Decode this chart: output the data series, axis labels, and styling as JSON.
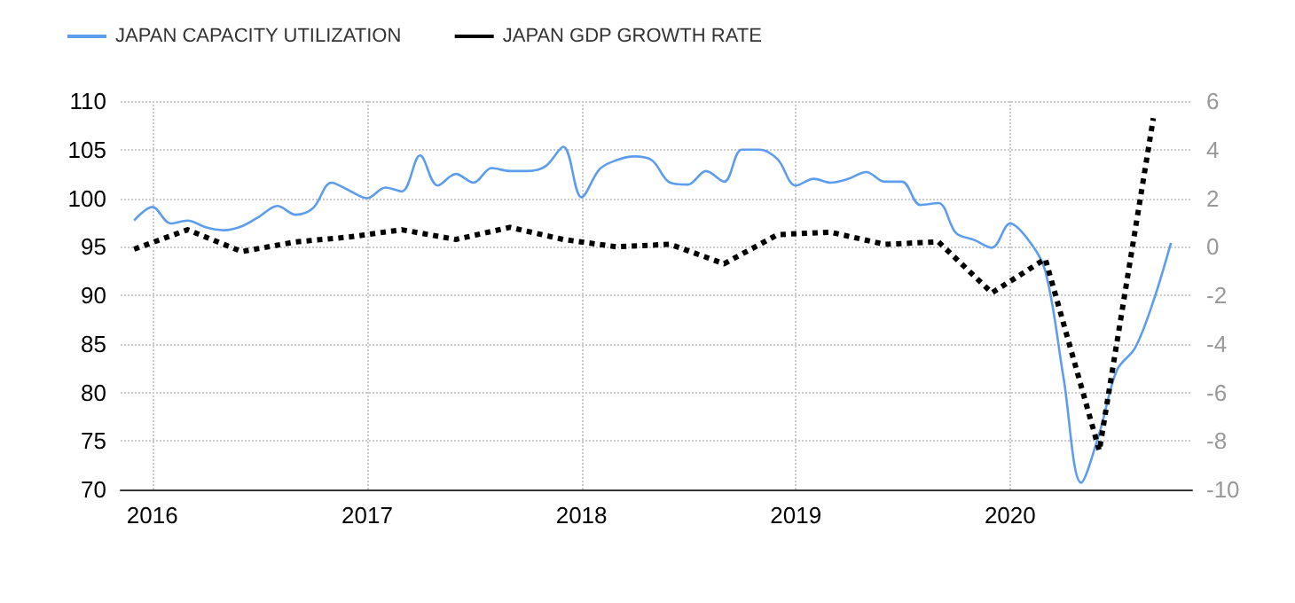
{
  "chart_data": {
    "type": "line",
    "xlim": [
      "2015-11-08",
      "2020-11-06"
    ],
    "xticks": [
      {
        "value": "2016-01-01",
        "label": "2016"
      },
      {
        "value": "2017-01-01",
        "label": "2017"
      },
      {
        "value": "2018-01-01",
        "label": "2018"
      },
      {
        "value": "2019-01-01",
        "label": "2019"
      },
      {
        "value": "2020-01-01",
        "label": "2020"
      }
    ],
    "ylim": [
      70,
      110
    ],
    "yticks": [
      70,
      75,
      80,
      85,
      90,
      95,
      100,
      105,
      110
    ],
    "y2lim": [
      -10,
      6
    ],
    "y2ticks": [
      -10,
      -8,
      -6,
      -4,
      -2,
      0,
      2,
      4,
      6
    ],
    "grid": true,
    "legend": "top left",
    "marker": "none",
    "series": [
      {
        "name": "JAPAN CAPACITY UTILIZATION",
        "color": "#5c9ded",
        "line_style": "solid",
        "x": [
          "2015-12",
          "2016-01",
          "2016-02",
          "2016-03",
          "2016-04",
          "2016-05",
          "2016-06",
          "2016-07",
          "2016-08",
          "2016-09",
          "2016-10",
          "2016-11",
          "2016-12",
          "2017-01",
          "2017-02",
          "2017-03",
          "2017-04",
          "2017-05",
          "2017-06",
          "2017-07",
          "2017-08",
          "2017-09",
          "2017-10",
          "2017-11",
          "2017-12",
          "2018-01",
          "2018-02",
          "2018-03",
          "2018-04",
          "2018-05",
          "2018-06",
          "2018-07",
          "2018-08",
          "2018-09",
          "2018-10",
          "2018-11",
          "2018-12",
          "2019-01",
          "2019-02",
          "2019-03",
          "2019-04",
          "2019-05",
          "2019-06",
          "2019-07",
          "2019-08",
          "2019-09",
          "2019-10",
          "2019-11",
          "2019-12",
          "2020-01",
          "2020-02",
          "2020-03",
          "2020-04",
          "2020-05",
          "2020-06",
          "2020-07",
          "2020-08",
          "2020-09",
          "2020-10"
        ],
        "values": [
          97.7,
          99.1,
          97.4,
          97.7,
          97.0,
          96.7,
          97.1,
          98.1,
          99.2,
          98.3,
          99.0,
          101.6,
          100.8,
          100.0,
          101.1,
          100.7,
          104.4,
          101.3,
          102.5,
          101.6,
          103.1,
          102.8,
          102.8,
          103.3,
          105.3,
          100.1,
          103.0,
          103.9,
          104.3,
          103.9,
          101.6,
          101.4,
          102.8,
          101.7,
          105.0,
          105.0,
          104.0,
          101.3,
          102.0,
          101.6,
          102.0,
          102.7,
          101.7,
          101.7,
          99.3,
          99.5,
          96.4,
          95.7,
          94.9,
          97.4,
          95.7,
          92.5,
          81.5,
          70.7,
          75.8,
          82.3,
          84.6,
          89.4,
          95.4
        ]
      },
      {
        "name": "JAPAN GDP GROWTH RATE",
        "color": "#000000",
        "line_style": "dotted",
        "axis": "y2",
        "x": [
          "2015-12",
          "2016-03",
          "2016-06",
          "2016-09",
          "2016-12",
          "2017-03",
          "2017-06",
          "2017-09",
          "2017-12",
          "2018-03",
          "2018-06",
          "2018-09",
          "2018-12",
          "2019-03",
          "2019-06",
          "2019-09",
          "2019-12",
          "2020-03",
          "2020-06",
          "2020-09"
        ],
        "values": [
          -0.1,
          0.7,
          -0.2,
          0.2,
          0.4,
          0.7,
          0.3,
          0.8,
          0.3,
          0.0,
          0.1,
          -0.7,
          0.5,
          0.6,
          0.1,
          0.2,
          -1.9,
          -0.5,
          -8.4,
          5.3
        ]
      }
    ]
  }
}
